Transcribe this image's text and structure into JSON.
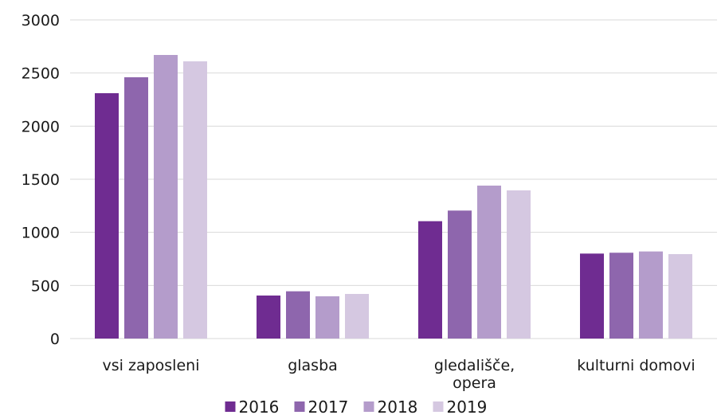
{
  "chart_data": {
    "type": "bar",
    "title": "",
    "xlabel": "",
    "ylabel": "",
    "ylim": [
      0,
      3000
    ],
    "yticks": [
      0,
      500,
      1000,
      1500,
      2000,
      2500,
      3000
    ],
    "grid": true,
    "legend_position": "bottom",
    "categories": [
      [
        "vsi zaposleni"
      ],
      [
        "glasba"
      ],
      [
        "gledališče,",
        "opera"
      ],
      [
        "kulturni domovi"
      ]
    ],
    "series": [
      {
        "name": "2016",
        "color": "#6f2c91",
        "values": [
          2310,
          405,
          1105,
          800
        ]
      },
      {
        "name": "2017",
        "color": "#8e66ad",
        "values": [
          2460,
          445,
          1205,
          808
        ]
      },
      {
        "name": "2018",
        "color": "#b49ccb",
        "values": [
          2670,
          398,
          1440,
          820
        ]
      },
      {
        "name": "2019",
        "color": "#d5c8e1",
        "values": [
          2610,
          420,
          1395,
          795
        ]
      }
    ]
  }
}
